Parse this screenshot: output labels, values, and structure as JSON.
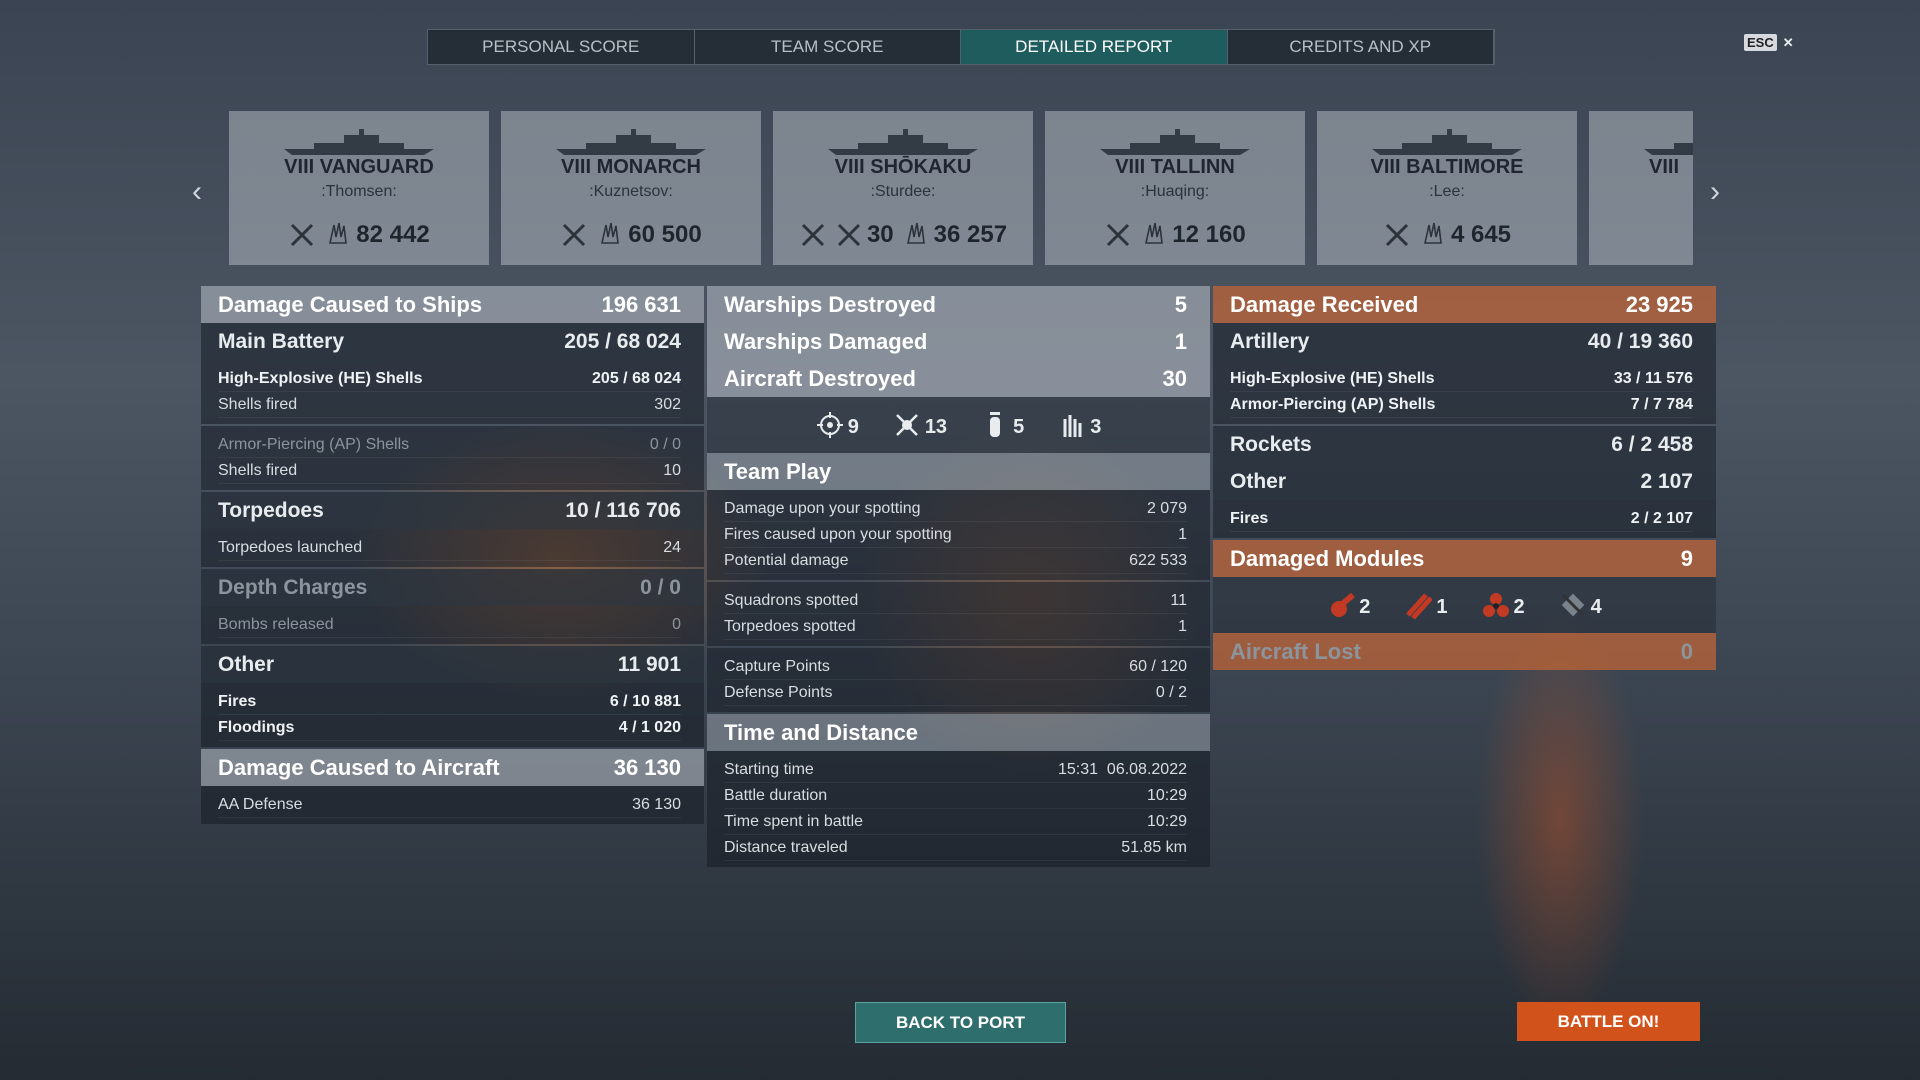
{
  "tabs": {
    "items": [
      "PERSONAL SCORE",
      "TEAM SCORE",
      "DETAILED REPORT",
      "CREDITS AND XP"
    ],
    "active": 2
  },
  "esc": "ESC",
  "ships": [
    {
      "name": "VIII VANGUARD",
      "player": ":Thomsen:",
      "stats": [
        {
          "icon": "damage",
          "value": "82 442"
        }
      ]
    },
    {
      "name": "VIII MONARCH",
      "player": ":Kuznetsov:",
      "stats": [
        {
          "icon": "damage",
          "value": "60 500"
        }
      ]
    },
    {
      "name": "VIII SHŌKAKU",
      "player": ":Sturdee:",
      "stats": [
        {
          "icon": "planes",
          "value": "30"
        },
        {
          "icon": "damage",
          "value": "36 257"
        }
      ]
    },
    {
      "name": "VIII TALLINN",
      "player": ":Huaqing:",
      "stats": [
        {
          "icon": "damage",
          "value": "12 160"
        }
      ]
    },
    {
      "name": "VIII BALTIMORE",
      "player": ":Lee:",
      "stats": [
        {
          "icon": "damage",
          "value": "4 645"
        }
      ]
    },
    {
      "name": "VIII",
      "player": "",
      "stats": []
    }
  ],
  "columns": [
    [
      {
        "kind": "head",
        "style": "light",
        "label": "Damage Caused to Ships",
        "value": "196 631"
      },
      {
        "kind": "sub",
        "label": "Main Battery",
        "value": "205 / 68 024",
        "groups": [
          [
            {
              "label": "High-Explosive (HE) Shells",
              "value": "205 / 68 024",
              "strong": true
            },
            {
              "label": "Shells fired",
              "value": "302"
            }
          ],
          [
            {
              "label": "Armor-Piercing (AP) Shells",
              "value": "0 / 0",
              "dim": true
            },
            {
              "label": "Shells fired",
              "value": "10"
            }
          ]
        ]
      },
      {
        "kind": "sub",
        "label": "Torpedoes",
        "value": "10 / 116 706",
        "groups": [
          [
            {
              "label": "Torpedoes launched",
              "value": "24"
            }
          ]
        ]
      },
      {
        "kind": "sub",
        "label": "Depth Charges",
        "value": "0 / 0",
        "dim": true,
        "groups": [
          [
            {
              "label": "Bombs released",
              "value": "0",
              "dim": true
            }
          ]
        ]
      },
      {
        "kind": "sub",
        "label": "Other",
        "value": "11 901",
        "groups": [
          [
            {
              "label": "Fires",
              "value": "6 / 10 881",
              "strong": true
            },
            {
              "label": "Floodings",
              "value": "4 / 1 020",
              "strong": true
            }
          ]
        ]
      },
      {
        "kind": "head",
        "style": "light",
        "label": "Damage Caused to Aircraft",
        "value": "36 130",
        "groups": [
          [
            {
              "label": "AA Defense",
              "value": "36 130"
            }
          ]
        ]
      }
    ],
    [
      {
        "kind": "head",
        "style": "light",
        "label": "Warships Destroyed",
        "value": "5"
      },
      {
        "kind": "head",
        "style": "light",
        "label": "Warships Damaged",
        "value": "1"
      },
      {
        "kind": "head",
        "style": "light",
        "label": "Aircraft Destroyed",
        "value": "30",
        "icons": [
          {
            "icon": "target",
            "value": "9"
          },
          {
            "icon": "aircraft",
            "value": "13"
          },
          {
            "icon": "bomb",
            "value": "5"
          },
          {
            "icon": "rockets",
            "value": "3"
          }
        ]
      },
      {
        "kind": "head",
        "style": "mid",
        "label": "Team Play",
        "groups": [
          [
            {
              "label": "Damage upon your spotting",
              "value": "2 079"
            },
            {
              "label": "Fires caused upon your spotting",
              "value": "1"
            },
            {
              "label": "Potential damage",
              "value": "622 533"
            }
          ],
          [
            {
              "label": "Squadrons spotted",
              "value": "11"
            },
            {
              "label": "Torpedoes spotted",
              "value": "1"
            }
          ],
          [
            {
              "label": "Capture Points",
              "value": "60 / 120"
            },
            {
              "label": "Defense Points",
              "value": "0 / 2"
            }
          ]
        ]
      },
      {
        "kind": "head",
        "style": "mid",
        "label": "Time and Distance",
        "groups": [
          [
            {
              "label": "Starting time",
              "value": "15:31  06.08.2022"
            },
            {
              "label": "Battle duration",
              "value": "10:29"
            },
            {
              "label": "Time spent in battle",
              "value": "10:29"
            },
            {
              "label": "Distance traveled",
              "value": "51.85 km"
            }
          ]
        ]
      }
    ],
    [
      {
        "kind": "head",
        "style": "orange",
        "label": "Damage Received",
        "value": "23 925"
      },
      {
        "kind": "sub",
        "label": "Artillery",
        "value": "40 / 19 360",
        "groups": [
          [
            {
              "label": "High-Explosive (HE) Shells",
              "value": "33 / 11 576",
              "strong": true
            },
            {
              "label": "Armor-Piercing (AP) Shells",
              "value": "7 / 7 784",
              "strong": true
            }
          ]
        ]
      },
      {
        "kind": "sub",
        "label": "Rockets",
        "value": "6 / 2 458"
      },
      {
        "kind": "sub",
        "label": "Other",
        "value": "2 107",
        "groups": [
          [
            {
              "label": "Fires",
              "value": "2 / 2 107",
              "strong": true
            }
          ]
        ]
      },
      {
        "kind": "head",
        "style": "orange",
        "label": "Damaged Modules",
        "value": "9",
        "icons": [
          {
            "icon": "gun",
            "value": "2"
          },
          {
            "icon": "torpedo",
            "value": "1"
          },
          {
            "icon": "propeller",
            "value": "2"
          },
          {
            "icon": "steering",
            "value": "4"
          }
        ]
      },
      {
        "kind": "head",
        "style": "orange",
        "label": "Aircraft Lost",
        "value": "0",
        "dim": true
      }
    ]
  ],
  "buttons": {
    "back": "BACK TO PORT",
    "battle": "BATTLE ON!"
  }
}
